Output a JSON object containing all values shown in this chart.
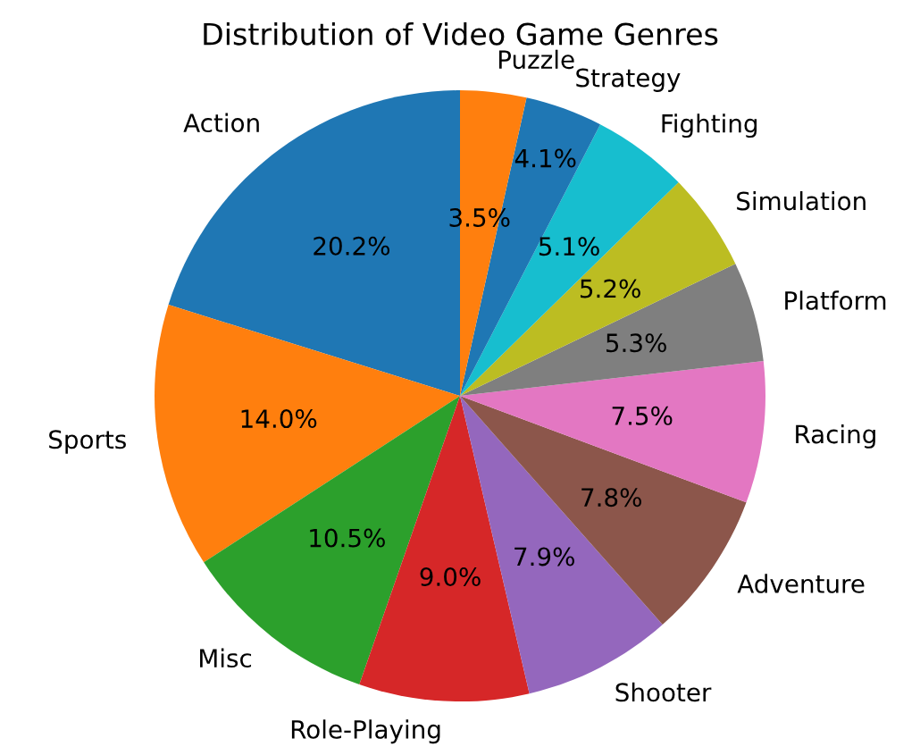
{
  "chart_data": {
    "type": "pie",
    "title": "Distribution of Video Game Genres",
    "categories": [
      "Action",
      "Sports",
      "Misc",
      "Role-Playing",
      "Shooter",
      "Adventure",
      "Racing",
      "Platform",
      "Simulation",
      "Fighting",
      "Strategy",
      "Puzzle"
    ],
    "values": [
      20.2,
      14.0,
      10.5,
      9.0,
      7.9,
      7.8,
      7.5,
      5.3,
      5.2,
      5.1,
      4.1,
      3.5
    ],
    "value_labels": [
      "20.2%",
      "14.0%",
      "10.5%",
      "9.0%",
      "7.9%",
      "7.8%",
      "7.5%",
      "5.3%",
      "5.2%",
      "5.1%",
      "4.1%",
      "3.5%"
    ],
    "colors": [
      "#1f77b4",
      "#ff7f0e",
      "#2ca02c",
      "#d62728",
      "#9467bd",
      "#8c564b",
      "#e377c2",
      "#7f7f7f",
      "#bcbd22",
      "#17becf",
      "#1f77b4",
      "#ff7f0e"
    ]
  }
}
